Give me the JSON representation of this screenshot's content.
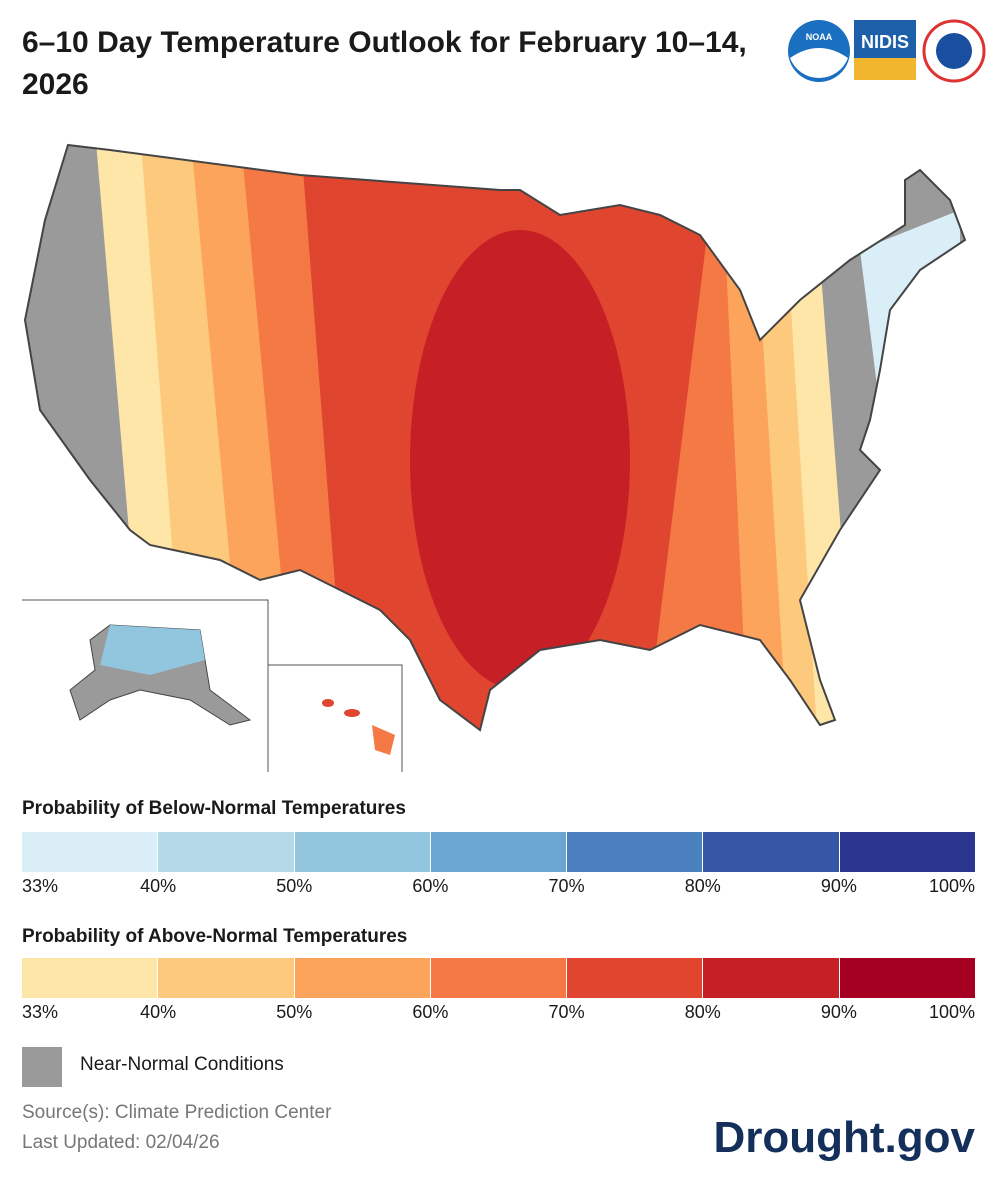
{
  "header": {
    "title": "6–10 Day Temperature Outlook for February 10–14, 2026",
    "logos": [
      "NOAA",
      "NIDIS"
    ]
  },
  "legend_below": {
    "title": "Probability of Below-Normal Temperatures",
    "labels": [
      "33%",
      "40%",
      "50%",
      "60%",
      "70%",
      "80%",
      "90%",
      "100%"
    ],
    "colors": [
      "#d9eef7",
      "#b4daea",
      "#92c5de",
      "#6aa6cf",
      "#4a80bd",
      "#3656a6",
      "#2b3590"
    ]
  },
  "legend_above": {
    "title": "Probability of Above-Normal Temperatures",
    "labels": [
      "33%",
      "40%",
      "50%",
      "60%",
      "70%",
      "80%",
      "90%",
      "100%"
    ],
    "colors": [
      "#fee6a8",
      "#fdc97c",
      "#fca45c",
      "#f47945",
      "#e0462f",
      "#c71f26",
      "#a50021"
    ]
  },
  "near_normal": "Near-Normal Conditions",
  "footer": {
    "source": "Source(s): Climate Prediction Center",
    "updated": "Last Updated: 02/04/26",
    "brand": "Drought.gov"
  }
}
